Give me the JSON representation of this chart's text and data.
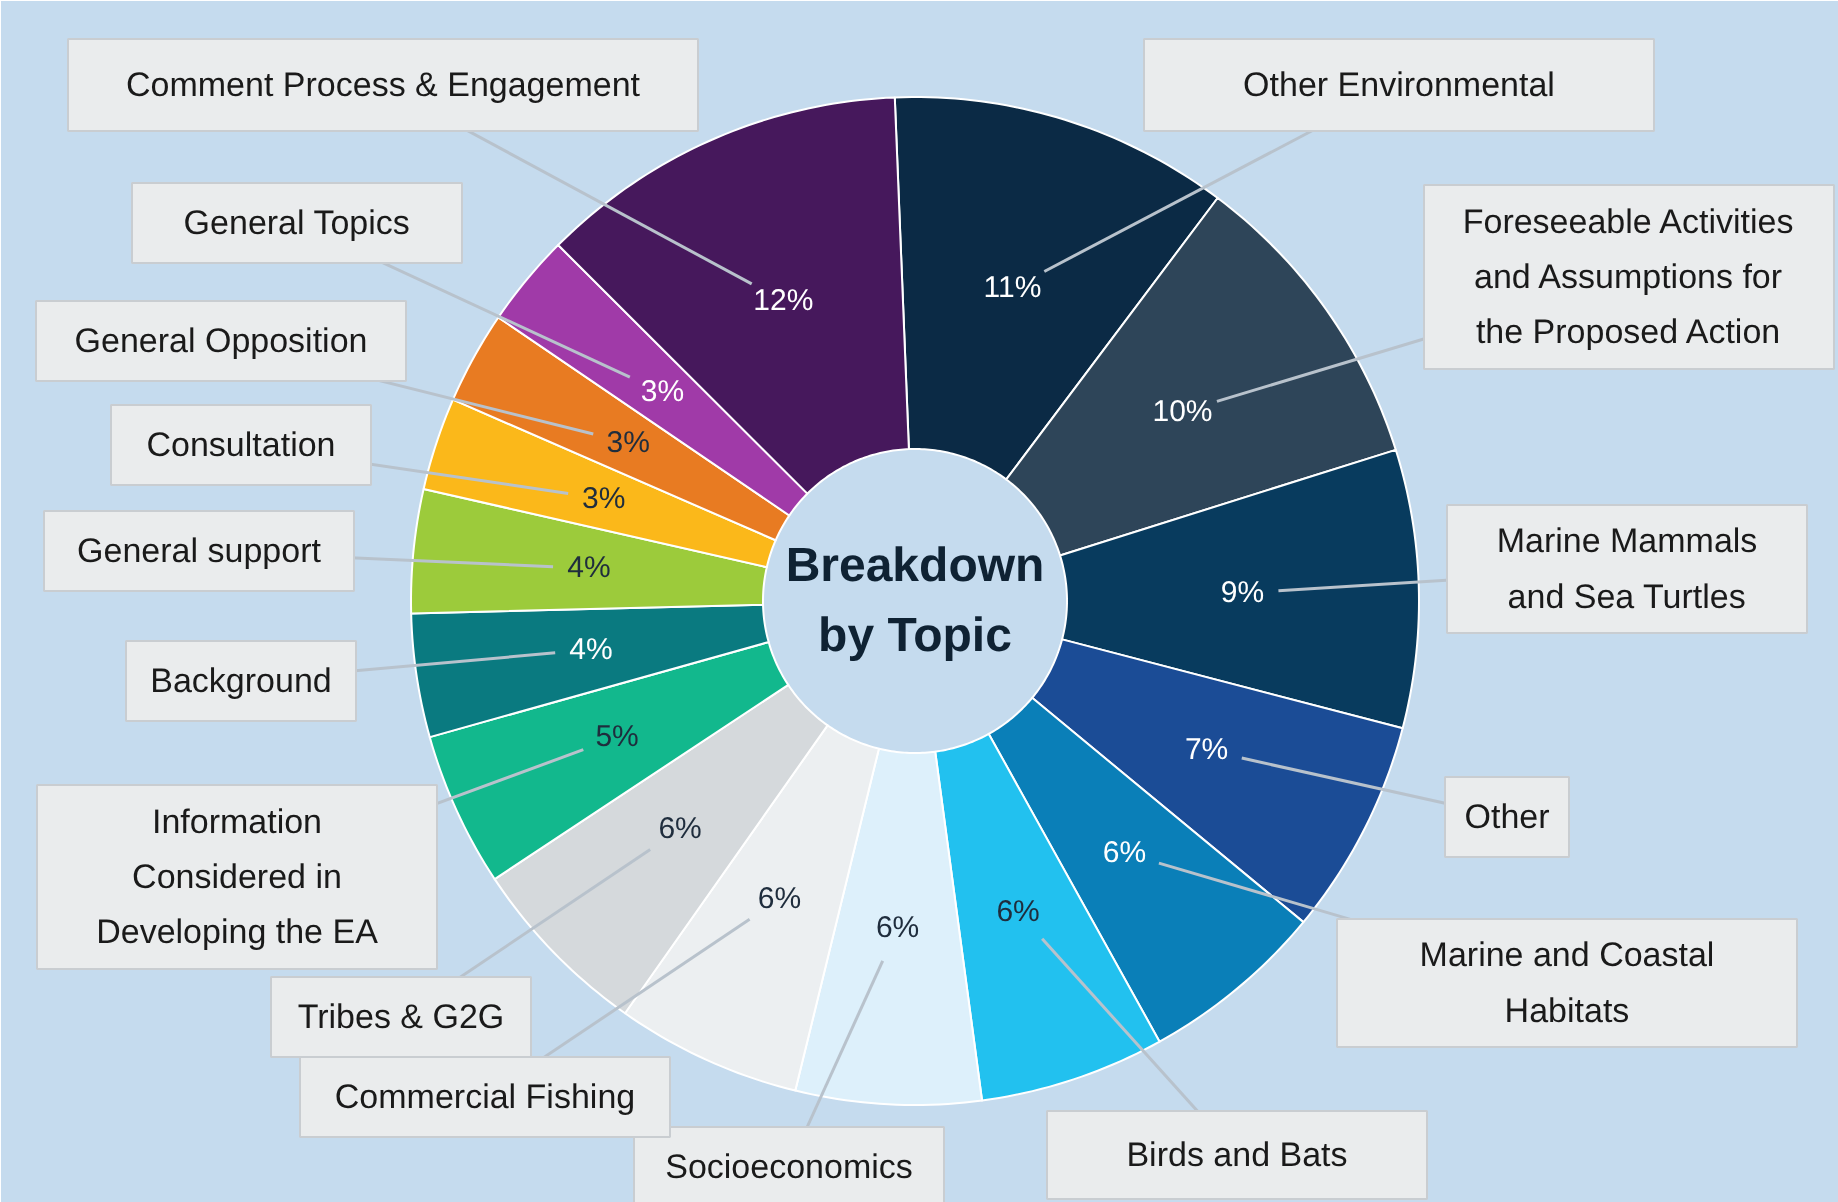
{
  "chart_data": {
    "type": "donut",
    "title": "Breakdown by Topic",
    "categories": [
      "Other Environmental",
      "Foreseeable Activities and Assumptions for the Proposed Action",
      "Marine Mammals and Sea Turtles",
      "Other",
      "Marine and Coastal Habitats",
      "Birds and Bats",
      "Socioeconomics",
      "Commercial Fishing",
      "Tribes & G2G",
      "Information Considered in Developing the EA",
      "Background",
      "General support",
      "Consultation",
      "General Opposition",
      "General Topics",
      "Comment Process & Engagement"
    ],
    "values": [
      11,
      10,
      9,
      7,
      6,
      6,
      6,
      6,
      6,
      5,
      4,
      4,
      3,
      3,
      3,
      12
    ],
    "value_labels": [
      "11%",
      "10%",
      "9%",
      "7%",
      "6%",
      "6%",
      "6%",
      "6%",
      "6%",
      "5%",
      "4%",
      "4%",
      "3%",
      "3%",
      "3%",
      "12%"
    ],
    "colors": [
      "#0b2a45",
      "#2e4559",
      "#083b5e",
      "#1b4c96",
      "#0a7fb8",
      "#22c1ef",
      "#ddf0fb",
      "#eceff1",
      "#d5d9dc",
      "#12b88d",
      "#0a7a80",
      "#9ccb3b",
      "#fbb81a",
      "#e87b22",
      "#a03aa8",
      "#46185c"
    ]
  }
}
